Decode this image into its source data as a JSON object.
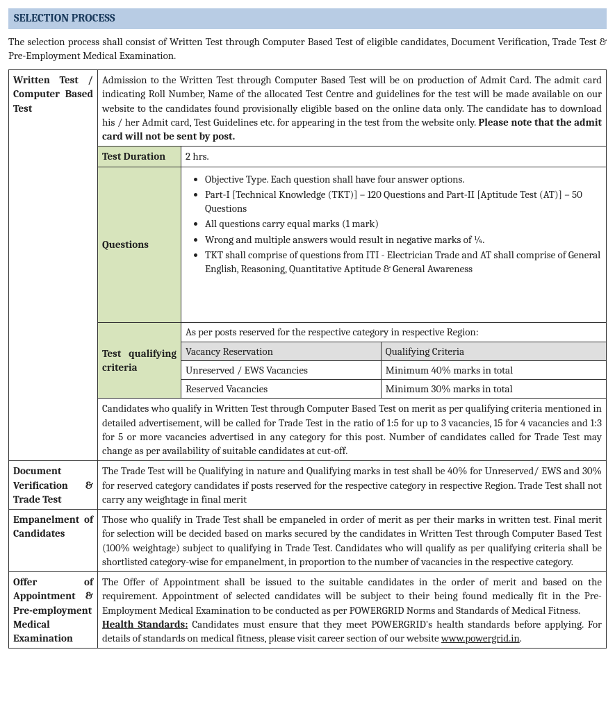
{
  "header": "SELECTION PROCESS",
  "intro": "The selection process shall consist of Written Test through Computer Based Test of eligible candidates, Document Verification, Trade Test & Pre-Employment Medical Examination.",
  "rows": {
    "written": {
      "label": "Written Test / Computer Based Test",
      "admission_text": "Admission to the Written Test through Computer Based Test will be on production of Admit Card. The admit card indicating Roll Number, Name of the allocated Test Centre and guidelines for the test will be made available on our website to the candidates found provisionally eligible based on the online data only. The candidate has to download his / her Admit card, Test Guidelines etc. for appearing in the test from the website only. ",
      "admission_bold": "Please note that the admit card will not be sent by post.",
      "duration_label": "Test Duration",
      "duration_value": "2 hrs.",
      "questions_label": "Questions",
      "questions": [
        "Objective Type. Each question shall have four answer options.",
        "Part-I [Technical Knowledge (TKT)] – 120 Questions and Part-II [Aptitude Test (AT)] – 50 Questions",
        "All questions carry equal marks (1 mark)",
        "Wrong and multiple answers would result in negative marks of ¼.",
        "TKT shall comprise of questions from ITI - Electrician Trade and AT shall comprise of General English, Reasoning, Quantitative Aptitude & General Awareness"
      ],
      "qual_label": "Test qualifying criteria",
      "qual_intro": "As per posts reserved for the respective category in respective Region:",
      "qual_headers": [
        "Vacancy Reservation",
        "Qualifying Criteria"
      ],
      "qual_rows": [
        [
          "Unreserved / EWS Vacancies",
          "Minimum 40% marks in total"
        ],
        [
          "Reserved Vacancies",
          "Minimum 30% marks in total"
        ]
      ],
      "qual_note": "Candidates who qualify in Written Test through Computer Based Test on merit as per qualifying criteria mentioned in detailed advertisement, will be called for Trade Test in the ratio of 1:5 for up to 3 vacancies, 15 for 4 vacancies and 1:3 for 5 or more vacancies advertised in any category for this post.  Number of candidates called for Trade Test may change as per availability of suitable candidates at cut-off."
    },
    "docverif": {
      "label": "Document Verification & Trade Test",
      "text": "The Trade Test will be Qualifying in nature and Qualifying marks in test shall be 40% for Unreserved/ EWS and 30% for reserved category candidates if posts reserved for the respective category in respective Region. Trade Test shall not carry any weightage in final merit"
    },
    "empanel": {
      "label": "Empanelment of Candidates",
      "text": "Those who qualify in Trade Test shall be empaneled in order of merit as per their marks in written test. Final merit for selection will be decided based on marks secured by the candidates in Written Test through Computer Based Test (100% weightage) subject to qualifying in Trade Test. Candidates who will qualify as per qualifying criteria shall be shortlisted category-wise for empanelment, in proportion to the number of vacancies in the respective category."
    },
    "offer": {
      "label": "Offer of Appointment & Pre-employment Medical Examination",
      "text1": "The Offer of Appointment shall be issued to the suitable candidates in the order of merit and based on the requirement. Appointment of selected candidates will be subject to their being found medically fit in the Pre-Employment Medical Examination to be conducted as per POWERGRID Norms and Standards of Medical Fitness.",
      "health_label": "Health Standards:",
      "text2": " Candidates must ensure that they meet POWERGRID's health standards before applying. For details of standards on medical fitness, please visit career section of our website ",
      "link": "www.powergrid.in",
      "text3": "."
    }
  }
}
